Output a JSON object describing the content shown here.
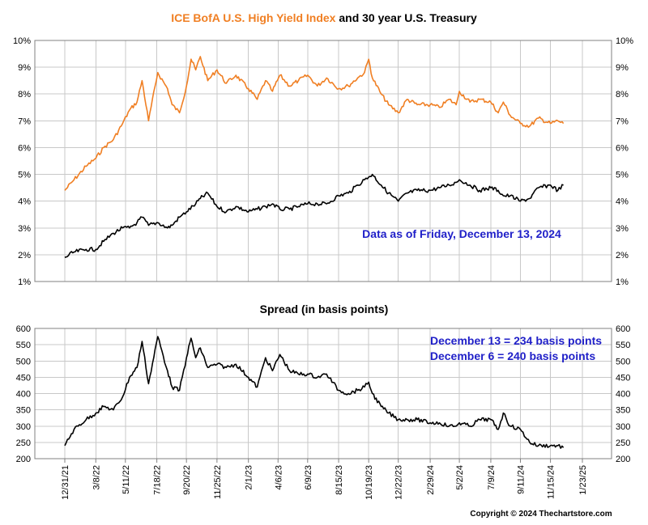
{
  "chart_data": [
    {
      "type": "line",
      "title_part1": "ICE BofA U.S. High Yield Index",
      "title_part2": " and 30 year U.S. Treasury",
      "ylim": [
        1,
        10
      ],
      "y_ticks": [
        "1%",
        "2%",
        "3%",
        "4%",
        "5%",
        "6%",
        "7%",
        "8%",
        "9%",
        "10%"
      ],
      "grid": true,
      "annotation": "Data as of Friday, December 13, 2024",
      "series": [
        {
          "name": "ICE BofA U.S. High Yield Index",
          "color": "#f07f23",
          "x": [
            "2021-12-31",
            "2022-01-20",
            "2022-02-15",
            "2022-03-08",
            "2022-03-25",
            "2022-04-15",
            "2022-05-05",
            "2022-05-20",
            "2022-06-05",
            "2022-06-16",
            "2022-06-30",
            "2022-07-20",
            "2022-08-10",
            "2022-08-20",
            "2022-09-05",
            "2022-09-20",
            "2022-09-30",
            "2022-10-10",
            "2022-10-20",
            "2022-11-05",
            "2022-11-25",
            "2022-12-15",
            "2023-01-05",
            "2023-02-01",
            "2023-02-20",
            "2023-03-10",
            "2023-03-25",
            "2023-04-10",
            "2023-05-01",
            "2023-05-20",
            "2023-06-09",
            "2023-06-30",
            "2023-07-20",
            "2023-08-15",
            "2023-09-05",
            "2023-09-25",
            "2023-10-10",
            "2023-10-19",
            "2023-10-27",
            "2023-11-15",
            "2023-12-01",
            "2023-12-22",
            "2024-01-10",
            "2024-02-01",
            "2024-02-29",
            "2024-03-20",
            "2024-04-10",
            "2024-04-25",
            "2024-05-02",
            "2024-05-25",
            "2024-06-15",
            "2024-07-09",
            "2024-07-25",
            "2024-08-05",
            "2024-08-20",
            "2024-09-11",
            "2024-10-01",
            "2024-10-20",
            "2024-11-15",
            "2024-12-01",
            "2024-12-13"
          ],
          "y": [
            4.4,
            4.8,
            5.3,
            5.6,
            6.0,
            6.3,
            6.9,
            7.4,
            7.7,
            8.5,
            7.0,
            8.8,
            8.2,
            7.6,
            7.3,
            8.3,
            9.3,
            8.9,
            9.4,
            8.5,
            8.9,
            8.4,
            8.7,
            8.2,
            7.8,
            8.5,
            8.1,
            8.7,
            8.3,
            8.5,
            8.7,
            8.3,
            8.6,
            8.2,
            8.3,
            8.6,
            8.8,
            9.3,
            8.6,
            8.0,
            7.6,
            7.3,
            7.8,
            7.6,
            7.6,
            7.5,
            7.8,
            7.6,
            8.1,
            7.7,
            7.8,
            7.7,
            7.3,
            7.7,
            7.2,
            6.9,
            6.8,
            7.1,
            6.9,
            7.0,
            6.9
          ]
        },
        {
          "name": "30 year U.S. Treasury",
          "color": "#000000",
          "x": [
            "2021-12-31",
            "2022-01-20",
            "2022-02-15",
            "2022-03-08",
            "2022-03-25",
            "2022-04-15",
            "2022-05-05",
            "2022-05-20",
            "2022-06-05",
            "2022-06-16",
            "2022-06-30",
            "2022-07-20",
            "2022-08-10",
            "2022-08-20",
            "2022-09-05",
            "2022-09-20",
            "2022-10-10",
            "2022-10-20",
            "2022-11-05",
            "2022-11-25",
            "2022-12-15",
            "2023-01-05",
            "2023-02-01",
            "2023-02-20",
            "2023-03-10",
            "2023-03-25",
            "2023-04-10",
            "2023-05-01",
            "2023-05-20",
            "2023-06-09",
            "2023-06-30",
            "2023-07-20",
            "2023-08-15",
            "2023-09-05",
            "2023-09-25",
            "2023-10-10",
            "2023-10-19",
            "2023-10-27",
            "2023-11-15",
            "2023-12-01",
            "2023-12-22",
            "2024-01-10",
            "2024-02-01",
            "2024-02-29",
            "2024-03-20",
            "2024-04-10",
            "2024-04-25",
            "2024-05-02",
            "2024-05-25",
            "2024-06-15",
            "2024-07-09",
            "2024-07-25",
            "2024-08-05",
            "2024-08-20",
            "2024-09-11",
            "2024-10-01",
            "2024-10-20",
            "2024-11-15",
            "2024-12-01",
            "2024-12-13"
          ],
          "y": [
            1.9,
            2.1,
            2.2,
            2.2,
            2.5,
            2.8,
            3.0,
            3.0,
            3.2,
            3.4,
            3.1,
            3.2,
            3.0,
            3.1,
            3.4,
            3.6,
            3.9,
            4.1,
            4.3,
            3.8,
            3.6,
            3.8,
            3.6,
            3.7,
            3.8,
            3.9,
            3.7,
            3.7,
            3.8,
            3.9,
            3.9,
            3.9,
            4.2,
            4.3,
            4.6,
            4.8,
            4.9,
            5.0,
            4.6,
            4.3,
            4.0,
            4.3,
            4.4,
            4.4,
            4.5,
            4.6,
            4.7,
            4.8,
            4.6,
            4.4,
            4.5,
            4.4,
            4.2,
            4.2,
            4.0,
            4.1,
            4.5,
            4.6,
            4.4,
            4.6
          ]
        }
      ]
    },
    {
      "type": "line",
      "title": "Spread (in basis points)",
      "ylim": [
        200,
        600
      ],
      "y_ticks": [
        "200",
        "250",
        "300",
        "350",
        "400",
        "450",
        "500",
        "550",
        "600"
      ],
      "grid": true,
      "annotation_lines": [
        "December 13 = 234 basis points",
        "December 6 = 240 basis points"
      ],
      "series": [
        {
          "color": "#000000",
          "x": [
            "2021-12-31",
            "2022-01-20",
            "2022-02-15",
            "2022-03-08",
            "2022-03-25",
            "2022-04-15",
            "2022-05-05",
            "2022-05-20",
            "2022-06-05",
            "2022-06-16",
            "2022-06-30",
            "2022-07-20",
            "2022-08-10",
            "2022-08-20",
            "2022-09-05",
            "2022-09-20",
            "2022-09-30",
            "2022-10-10",
            "2022-10-20",
            "2022-11-05",
            "2022-11-25",
            "2022-12-15",
            "2023-01-05",
            "2023-02-01",
            "2023-02-20",
            "2023-03-10",
            "2023-03-25",
            "2023-04-10",
            "2023-05-01",
            "2023-05-20",
            "2023-06-09",
            "2023-06-30",
            "2023-07-20",
            "2023-08-15",
            "2023-09-05",
            "2023-09-25",
            "2023-10-10",
            "2023-10-19",
            "2023-10-27",
            "2023-11-15",
            "2023-12-01",
            "2023-12-22",
            "2024-01-10",
            "2024-02-01",
            "2024-02-29",
            "2024-03-20",
            "2024-04-10",
            "2024-04-25",
            "2024-05-02",
            "2024-05-25",
            "2024-06-15",
            "2024-07-09",
            "2024-07-25",
            "2024-08-05",
            "2024-08-20",
            "2024-09-11",
            "2024-10-01",
            "2024-10-20",
            "2024-11-15",
            "2024-12-01",
            "2024-12-13"
          ],
          "y": [
            240,
            290,
            320,
            340,
            360,
            350,
            390,
            450,
            480,
            560,
            430,
            575,
            470,
            420,
            410,
            510,
            570,
            510,
            540,
            480,
            490,
            480,
            490,
            450,
            420,
            510,
            470,
            520,
            470,
            460,
            460,
            450,
            460,
            410,
            400,
            410,
            420,
            435,
            400,
            360,
            340,
            320,
            320,
            320,
            310,
            310,
            300,
            300,
            310,
            300,
            320,
            320,
            290,
            340,
            300,
            290,
            250,
            240,
            240,
            240,
            234
          ]
        }
      ]
    }
  ],
  "x_ticks": [
    {
      "date": "2021-12-31",
      "label": "12/31/21"
    },
    {
      "date": "2022-03-08",
      "label": "3/8/22"
    },
    {
      "date": "2022-05-11",
      "label": "5/11/22"
    },
    {
      "date": "2022-07-18",
      "label": "7/18/22"
    },
    {
      "date": "2022-09-20",
      "label": "9/20/22"
    },
    {
      "date": "2022-11-25",
      "label": "11/25/22"
    },
    {
      "date": "2023-02-01",
      "label": "2/1/23"
    },
    {
      "date": "2023-04-06",
      "label": "4/6/23"
    },
    {
      "date": "2023-06-09",
      "label": "6/9/23"
    },
    {
      "date": "2023-08-15",
      "label": "8/15/23"
    },
    {
      "date": "2023-10-19",
      "label": "10/19/23"
    },
    {
      "date": "2023-12-22",
      "label": "12/22/23"
    },
    {
      "date": "2024-02-29",
      "label": "2/29/24"
    },
    {
      "date": "2024-05-02",
      "label": "5/2/24"
    },
    {
      "date": "2024-07-09",
      "label": "7/9/24"
    },
    {
      "date": "2024-09-11",
      "label": "9/11/24"
    },
    {
      "date": "2024-11-15",
      "label": "11/15/24"
    },
    {
      "date": "2025-01-23",
      "label": "1/23/25"
    }
  ],
  "copyright": "Copyright © 2024 Thechartstore.com"
}
